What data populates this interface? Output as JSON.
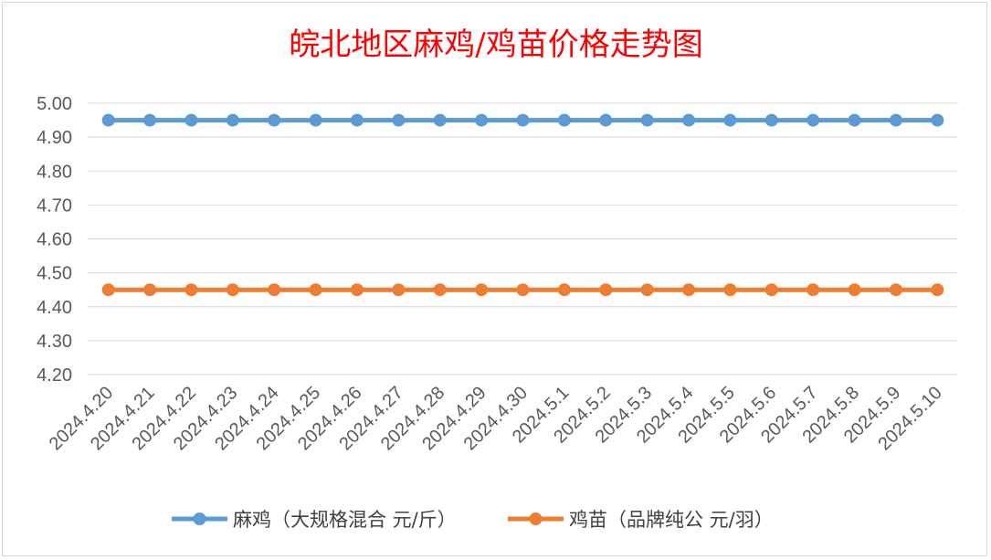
{
  "chart_data": {
    "type": "line",
    "title": "皖北地区麻鸡/鸡苗价格走势图",
    "categories": [
      "2024.4.20",
      "2024.4.21",
      "2024.4.22",
      "2024.4.23",
      "2024.4.24",
      "2024.4.25",
      "2024.4.26",
      "2024.4.27",
      "2024.4.28",
      "2024.4.29",
      "2024.4.30",
      "2024.5.1",
      "2024.5.2",
      "2024.5.3",
      "2024.5.4",
      "2024.5.5",
      "2024.5.6",
      "2024.5.7",
      "2024.5.8",
      "2024.5.9",
      "2024.5.10"
    ],
    "series": [
      {
        "name": "麻鸡（大规格混合 元/斤）",
        "color": "#5b9bd5",
        "values": [
          4.95,
          4.95,
          4.95,
          4.95,
          4.95,
          4.95,
          4.95,
          4.95,
          4.95,
          4.95,
          4.95,
          4.95,
          4.95,
          4.95,
          4.95,
          4.95,
          4.95,
          4.95,
          4.95,
          4.95,
          4.95
        ]
      },
      {
        "name": "鸡苗（品牌纯公 元/羽）",
        "color": "#ed7d31",
        "values": [
          4.45,
          4.45,
          4.45,
          4.45,
          4.45,
          4.45,
          4.45,
          4.45,
          4.45,
          4.45,
          4.45,
          4.45,
          4.45,
          4.45,
          4.45,
          4.45,
          4.45,
          4.45,
          4.45,
          4.45,
          4.45
        ]
      }
    ],
    "yticks": [
      "4.20",
      "4.30",
      "4.40",
      "4.50",
      "4.60",
      "4.70",
      "4.80",
      "4.90",
      "5.00"
    ],
    "ylim": [
      4.2,
      5.0
    ],
    "grid": true,
    "legend": "bottom"
  }
}
